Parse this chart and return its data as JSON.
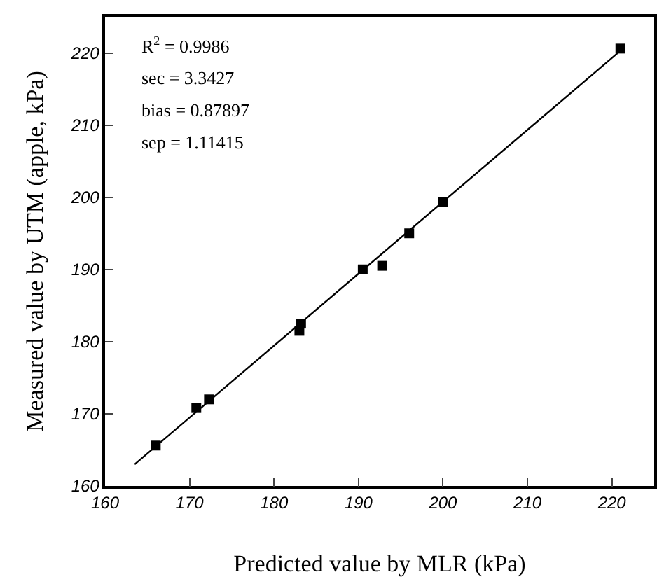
{
  "chart_data": {
    "type": "scatter",
    "xlabel": "Predicted value by MLR (kPa)",
    "ylabel": "Measured value by UTM (apple, kPa)",
    "x": [
      166,
      170.8,
      172.3,
      183,
      183.2,
      190.5,
      192.8,
      196,
      200,
      221
    ],
    "series": [
      {
        "color": "#000000",
        "marker": "square",
        "values": [
          165.6,
          170.8,
          172,
          181.5,
          182.5,
          190,
          190.5,
          195,
          199.3,
          220.6
        ]
      },
      {
        "type": "line",
        "color": "#000000",
        "marker": "none",
        "line_style": "solid",
        "x": [
          163.5,
          221
        ],
        "values": [
          163,
          220.3
        ]
      }
    ],
    "xlim": [
      160,
      225
    ],
    "xticks": [
      160,
      170,
      180,
      190,
      200,
      210,
      220
    ],
    "ylim": [
      160,
      225
    ],
    "yticks": [
      160,
      170,
      180,
      190,
      200,
      210,
      220
    ],
    "grid": false,
    "annotations": [
      "R$^{2}$ = 0.9986",
      "sec = 3.3427",
      "bias = 0.87897",
      "sep = 1.11415"
    ]
  }
}
